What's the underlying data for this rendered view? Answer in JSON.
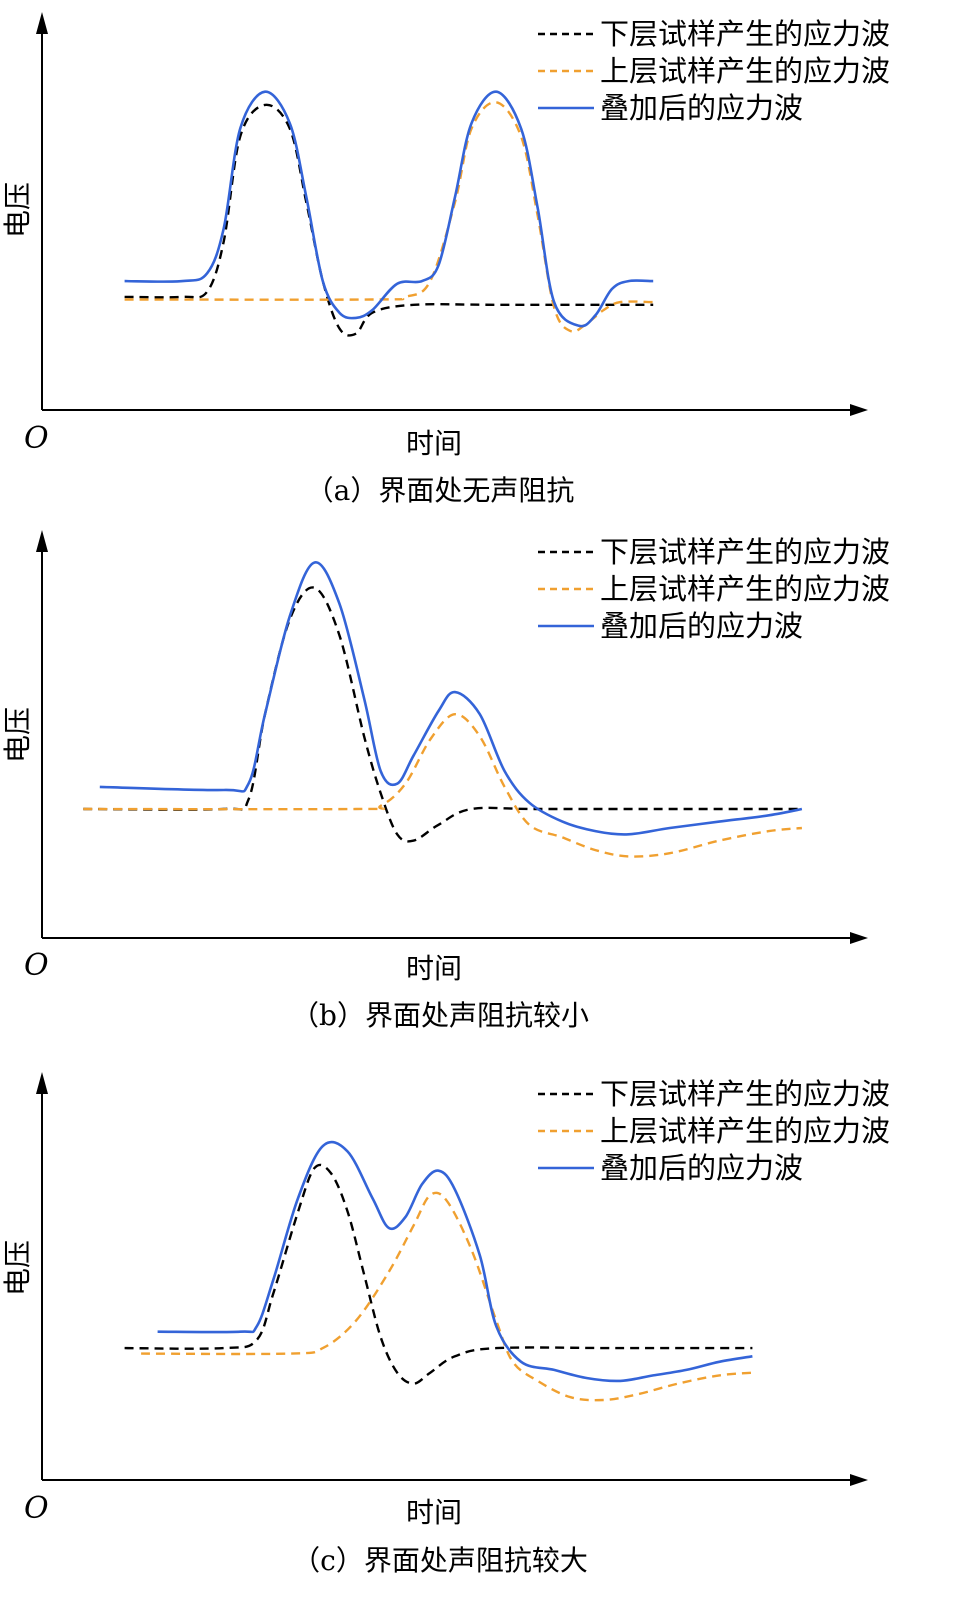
{
  "chart_data": [
    {
      "type": "line",
      "caption": "（a）界面处无声阻抗",
      "xlabel": "时间",
      "ylabel": "电压",
      "origin": "O",
      "legend_position": "top-right",
      "x_range": [
        0,
        100
      ],
      "y_range": [
        0,
        100
      ],
      "series": [
        {
          "name": "下层试样产生的应力波",
          "color": "#000000",
          "style": "dashed",
          "points": [
            [
              10,
              24
            ],
            [
              17,
              24
            ],
            [
              20,
              26
            ],
            [
              22,
              45
            ],
            [
              24,
              85
            ],
            [
              27,
              97
            ],
            [
              30,
              88
            ],
            [
              32,
              60
            ],
            [
              34,
              30
            ],
            [
              36,
              12
            ],
            [
              38,
              10
            ],
            [
              40,
              18
            ],
            [
              45,
              21
            ],
            [
              55,
              21
            ],
            [
              70,
              21
            ],
            [
              74,
              21
            ]
          ]
        },
        {
          "name": "上层试样产生的应力波",
          "color": "#f0a030",
          "style": "dashed",
          "points": [
            [
              10,
              23
            ],
            [
              40,
              23
            ],
            [
              44,
              24
            ],
            [
              47,
              30
            ],
            [
              50,
              60
            ],
            [
              52,
              88
            ],
            [
              55,
              98
            ],
            [
              58,
              85
            ],
            [
              60,
              55
            ],
            [
              62,
              20
            ],
            [
              64,
              11
            ],
            [
              66,
              14
            ],
            [
              68,
              19
            ],
            [
              70,
              22
            ],
            [
              74,
              22
            ]
          ]
        },
        {
          "name": "叠加后的应力波",
          "color": "#3464d8",
          "style": "solid",
          "points": [
            [
              10,
              30
            ],
            [
              17,
              30
            ],
            [
              20,
              33
            ],
            [
              22,
              50
            ],
            [
              24,
              88
            ],
            [
              27,
              102
            ],
            [
              30,
              90
            ],
            [
              32,
              62
            ],
            [
              34,
              30
            ],
            [
              36,
              18
            ],
            [
              38,
              16
            ],
            [
              40,
              19
            ],
            [
              43,
              29
            ],
            [
              46,
              30
            ],
            [
              48,
              36
            ],
            [
              50,
              62
            ],
            [
              52,
              90
            ],
            [
              55,
              102
            ],
            [
              58,
              88
            ],
            [
              60,
              58
            ],
            [
              62,
              22
            ],
            [
              65,
              13
            ],
            [
              67,
              17
            ],
            [
              69,
              27
            ],
            [
              71,
              30
            ],
            [
              74,
              30
            ]
          ]
        }
      ]
    },
    {
      "type": "line",
      "caption": "（b）界面处声阻抗较小",
      "xlabel": "时间",
      "ylabel": "电压",
      "origin": "O",
      "legend_position": "top-right",
      "x_range": [
        0,
        100
      ],
      "y_range": [
        0,
        100
      ],
      "series": [
        {
          "name": "下层试样产生的应力波",
          "color": "#000000",
          "style": "dashed",
          "points": [
            [
              5,
              25
            ],
            [
              22,
              25
            ],
            [
              25,
              28
            ],
            [
              27,
              55
            ],
            [
              30,
              85
            ],
            [
              33,
              95
            ],
            [
              36,
              80
            ],
            [
              39,
              48
            ],
            [
              41,
              30
            ],
            [
              43,
              17
            ],
            [
              45,
              15
            ],
            [
              48,
              20
            ],
            [
              52,
              25
            ],
            [
              60,
              25
            ],
            [
              80,
              25
            ],
            [
              92,
              25
            ]
          ]
        },
        {
          "name": "上层试样产生的应力波",
          "color": "#f0a030",
          "style": "dashed",
          "points": [
            [
              5,
              25
            ],
            [
              38,
              25
            ],
            [
              41,
              26
            ],
            [
              44,
              33
            ],
            [
              47,
              47
            ],
            [
              50,
              55
            ],
            [
              53,
              48
            ],
            [
              56,
              32
            ],
            [
              59,
              20
            ],
            [
              63,
              16
            ],
            [
              67,
              12
            ],
            [
              71,
              10
            ],
            [
              76,
              11
            ],
            [
              82,
              15
            ],
            [
              88,
              18
            ],
            [
              92,
              19
            ]
          ]
        },
        {
          "name": "叠加后的应力波",
          "color": "#3464d8",
          "style": "solid",
          "points": [
            [
              7,
              32
            ],
            [
              22,
              31
            ],
            [
              25,
              33
            ],
            [
              27,
              55
            ],
            [
              30,
              86
            ],
            [
              33,
              103
            ],
            [
              36,
              90
            ],
            [
              39,
              60
            ],
            [
              41,
              37
            ],
            [
              43,
              33
            ],
            [
              45,
              42
            ],
            [
              48,
              56
            ],
            [
              50,
              62
            ],
            [
              53,
              55
            ],
            [
              56,
              37
            ],
            [
              59,
              27
            ],
            [
              63,
              21
            ],
            [
              67,
              18
            ],
            [
              71,
              17
            ],
            [
              76,
              19
            ],
            [
              82,
              21
            ],
            [
              88,
              23
            ],
            [
              92,
              25
            ]
          ]
        }
      ]
    },
    {
      "type": "line",
      "caption": "（c）界面处声阻抗较大",
      "xlabel": "时间",
      "ylabel": "电压",
      "origin": "O",
      "legend_position": "top-right",
      "x_range": [
        0,
        100
      ],
      "y_range": [
        0,
        100
      ],
      "series": [
        {
          "name": "下层试样产生的应力波",
          "color": "#000000",
          "style": "dashed",
          "points": [
            [
              10,
              30
            ],
            [
              22,
              30
            ],
            [
              26,
              33
            ],
            [
              28,
              50
            ],
            [
              31,
              80
            ],
            [
              33,
              96
            ],
            [
              35,
              94
            ],
            [
              37,
              80
            ],
            [
              39,
              57
            ],
            [
              41,
              34
            ],
            [
              43,
              21
            ],
            [
              45,
              17
            ],
            [
              47,
              21
            ],
            [
              50,
              27
            ],
            [
              55,
              30
            ],
            [
              70,
              30
            ],
            [
              86,
              30
            ]
          ]
        },
        {
          "name": "上层试样产生的应力波",
          "color": "#f0a030",
          "style": "dashed",
          "points": [
            [
              12,
              28
            ],
            [
              30,
              28
            ],
            [
              34,
              30
            ],
            [
              38,
              40
            ],
            [
              42,
              58
            ],
            [
              45,
              75
            ],
            [
              47,
              86
            ],
            [
              49,
              84
            ],
            [
              52,
              66
            ],
            [
              55,
              40
            ],
            [
              57,
              25
            ],
            [
              60,
              18
            ],
            [
              64,
              12
            ],
            [
              68,
              11
            ],
            [
              72,
              13
            ],
            [
              77,
              17
            ],
            [
              82,
              20
            ],
            [
              86,
              21
            ]
          ]
        },
        {
          "name": "叠加后的应力波",
          "color": "#3464d8",
          "style": "solid",
          "points": [
            [
              14,
              36
            ],
            [
              24,
              36
            ],
            [
              26,
              38
            ],
            [
              28,
              55
            ],
            [
              31,
              85
            ],
            [
              34,
              104
            ],
            [
              37,
              102
            ],
            [
              40,
              85
            ],
            [
              42,
              74
            ],
            [
              44,
              78
            ],
            [
              46,
              90
            ],
            [
              48,
              95
            ],
            [
              50,
              88
            ],
            [
              53,
              64
            ],
            [
              55,
              38
            ],
            [
              58,
              25
            ],
            [
              62,
              22
            ],
            [
              66,
              19
            ],
            [
              70,
              18
            ],
            [
              74,
              20
            ],
            [
              78,
              22
            ],
            [
              82,
              25
            ],
            [
              86,
              27
            ]
          ]
        }
      ]
    }
  ]
}
